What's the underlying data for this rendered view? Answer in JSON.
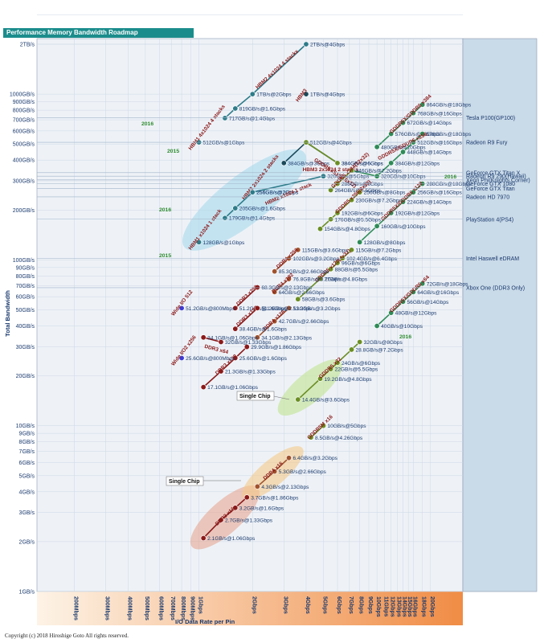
{
  "title": "Performance Memory Bandwidth Roadmap",
  "copyright": "Copyright (c) 2018 Hiroshige Goto All rights reserved.",
  "chart_data": {
    "type": "line",
    "xlabel": "I/O Data Rate per Pin",
    "ylabel": "Total Bandwidth",
    "y_scale": "log",
    "x_scale": "log",
    "x_ticks": [
      "200Mbps",
      "300Mbps",
      "400Mbps",
      "500Mbps",
      "600Mbps",
      "700Mbps",
      "800Mbps",
      "900Mbps",
      "1Gbps",
      "2Gbps",
      "3Gbps",
      "4Gbps",
      "5Gbps",
      "6Gbps",
      "7Gbps",
      "8Gbps",
      "9Gbps",
      "10Gbps",
      "11Gbps",
      "12Gbps",
      "13Gbps",
      "14Gbps",
      "15Gbps",
      "16Gbps",
      "18Gbps",
      "20Gbps"
    ],
    "x_tick_values": [
      0.2,
      0.3,
      0.4,
      0.5,
      0.6,
      0.7,
      0.8,
      0.9,
      1,
      2,
      3,
      4,
      5,
      6,
      7,
      8,
      9,
      10,
      11,
      12,
      13,
      14,
      15,
      16,
      18,
      20
    ],
    "y_ticks": [
      "1GB/s",
      "2GB/s",
      "3GB/s",
      "4GB/s",
      "5GB/s",
      "6GB/s",
      "7GB/s",
      "8GB/s",
      "9GB/s",
      "10GB/s",
      "20GB/s",
      "30GB/s",
      "40GB/s",
      "50GB/s",
      "60GB/s",
      "70GB/s",
      "80GB/s",
      "90GB/s",
      "100GB/s",
      "200GB/s",
      "300GB/s",
      "400GB/s",
      "500GB/s",
      "600GB/s",
      "700GB/s",
      "800GB/s",
      "900GB/s",
      "1000GB/s",
      "2TB/s"
    ],
    "y_tick_values": [
      1,
      2,
      3,
      4,
      5,
      6,
      7,
      8,
      9,
      10,
      20,
      30,
      40,
      50,
      60,
      70,
      80,
      90,
      100,
      200,
      300,
      400,
      500,
      600,
      700,
      800,
      900,
      1000,
      2000
    ],
    "series": [
      {
        "name": "HBM1 4x1024 4 stacks",
        "color": "#2e7c8a",
        "points": [
          {
            "x": 1.0,
            "y": 512,
            "label": "512GB/s@1Gbps"
          }
        ]
      },
      {
        "name": "HBM2 4x1024 4 stacks",
        "color": "#2e7c8a",
        "points": [
          {
            "x": 1.4,
            "y": 717,
            "label": "717GB/s@1.4Gbps"
          },
          {
            "x": 1.6,
            "y": 819,
            "label": "819GB/s@1.6Gbps"
          },
          {
            "x": 2,
            "y": 1000,
            "label": "1TB/s@2Gbps"
          },
          {
            "x": 4,
            "y": 2000,
            "label": "2TB/s@4Gbps"
          }
        ]
      },
      {
        "name": "HBM2 2x1024 2 stacks",
        "color": "#2e7c8a",
        "points": [
          {
            "x": 2,
            "y": 256,
            "label": "256GB/s@2Gbps"
          }
        ]
      },
      {
        "name": "HBM3 2x1024 2 stacks",
        "color": "#1a4a5a",
        "points": [
          {
            "x": 3,
            "y": 384,
            "label": "384GB/s@3Gbps"
          },
          {
            "x": 4,
            "y": 512
          },
          {
            "x": 6,
            "y": 384,
            "label": "384GB/s@6Gbps"
          }
        ]
      },
      {
        "name": "HBM2 x1024 1 stack",
        "color": "#2e7c8a",
        "points": [
          {
            "x": 1.4,
            "y": 179,
            "label": "179GB/s@1.4Gbps"
          },
          {
            "x": 1.6,
            "y": 205,
            "label": "205GB/s@1.6Gbps"
          },
          {
            "x": 2,
            "y": 256,
            "label": "256GB/s@2Gbps"
          },
          {
            "x": 5,
            "y": 320,
            "label": "320GB/s@5Gbps"
          }
        ]
      },
      {
        "name": "HBM1 x1024 1 stack",
        "color": "#2e7c8a",
        "points": [
          {
            "x": 1,
            "y": 128,
            "label": "128GB/s@1Gbps"
          }
        ]
      },
      {
        "name": "HBM3",
        "color": "#1a4a5a",
        "points": [
          {
            "x": 4,
            "y": 1000,
            "label": "1TB/s@4Gbps"
          }
        ]
      },
      {
        "name": "GDDR5 x512(16x32)",
        "color": "#6b8e23",
        "points": [
          {
            "x": 4,
            "y": 512,
            "label": "512GB/s@4Gbps"
          },
          {
            "x": 6,
            "y": 384,
            "label": "384GB/s@6Gbps"
          }
        ]
      },
      {
        "name": "GDDR5X/GDDR6 x384",
        "color": "#2e8b57",
        "points": [
          {
            "x": 10,
            "y": 480,
            "label": "480GB/s@10Gbps"
          },
          {
            "x": 12,
            "y": 576,
            "label": "576GB/s@12Gbps"
          },
          {
            "x": 14,
            "y": 672,
            "label": "672GB/s@14Gbps"
          },
          {
            "x": 16,
            "y": 768,
            "label": "768GB/s@16Gbps"
          },
          {
            "x": 18,
            "y": 864,
            "label": "864GB/s@18Gbps"
          }
        ]
      },
      {
        "name": "GDDR5X/GDDR6 x256",
        "color": "#2e8b57",
        "points": [
          {
            "x": 7.2,
            "y": 346,
            "label": "346GB/s@7.2Gbps"
          },
          {
            "x": 10,
            "y": 320,
            "label": "320GB/s@10Gbps"
          },
          {
            "x": 12,
            "y": 384,
            "label": "384GB/s@12Gbps"
          },
          {
            "x": 14,
            "y": 448,
            "label": "448GB/s@14Gbps"
          },
          {
            "x": 16,
            "y": 512,
            "label": "512GB/s@16Gbps"
          },
          {
            "x": 18,
            "y": 576,
            "label": "576GB/s@18Gbps"
          }
        ]
      },
      {
        "name": "GDDR5 x384(12x32)",
        "color": "#6b8e23",
        "points": [
          {
            "x": 5.5,
            "y": 264,
            "label": "264GB/s@5.5Gbps"
          },
          {
            "x": 6,
            "y": 288,
            "label": "288GB/s@6Gbps"
          },
          {
            "x": 7.2,
            "y": 346
          }
        ]
      },
      {
        "name": "GDDR5 x256(8x32)",
        "color": "#6b8e23",
        "points": [
          {
            "x": 5.5,
            "y": 176,
            "label": "176GB/s@5.5Gbps"
          },
          {
            "x": 4.8,
            "y": 154,
            "label": "154GB/s@4.8Gbps"
          },
          {
            "x": 6,
            "y": 192,
            "label": "192GB/s@6Gbps"
          },
          {
            "x": 7.2,
            "y": 230,
            "label": "230GB/s@7.2Gbps"
          },
          {
            "x": 8,
            "y": 256,
            "label": "256GB/s@8Gbps"
          }
        ]
      },
      {
        "name": "GDDR5X/GDDR6 x128",
        "color": "#2e8b57",
        "points": [
          {
            "x": 8,
            "y": 128,
            "label": "128GB/s@8Gbps"
          },
          {
            "x": 10,
            "y": 160,
            "label": "160GB/s@10Gbps"
          },
          {
            "x": 12,
            "y": 192,
            "label": "192GB/s@12Gbps"
          },
          {
            "x": 14,
            "y": 224,
            "label": "224GB/s@14Gbps"
          },
          {
            "x": 16,
            "y": 256,
            "label": "256GB/s@16Gbps"
          },
          {
            "x": 18,
            "y": 288,
            "label": "288GB/s@18Gbps"
          }
        ]
      },
      {
        "name": "GDDR5 x128(4x32)",
        "color": "#6b8e23",
        "points": [
          {
            "x": 3.6,
            "y": 58,
            "label": "58GB/s@3.6Gbps"
          },
          {
            "x": 4.8,
            "y": 77,
            "label": "77GB/s@4.8Gbps"
          },
          {
            "x": 5.5,
            "y": 88,
            "label": "88GB/s@5.5Gbps"
          },
          {
            "x": 6,
            "y": 96,
            "label": "96GB/s@6Gbps"
          },
          {
            "x": 6.4,
            "y": 102.4,
            "label": "102.4GB/s@6.4Gbps"
          },
          {
            "x": 7.2,
            "y": 115,
            "label": "115GB/s@7.2Gbps"
          }
        ]
      },
      {
        "name": "GDDR5X/GDDR6 x64",
        "color": "#2e8b57",
        "points": [
          {
            "x": 10,
            "y": 40,
            "label": "40GB/s@10Gbps"
          },
          {
            "x": 12,
            "y": 48,
            "label": "48GB/s@12Gbps"
          },
          {
            "x": 14,
            "y": 56,
            "label": "56GB/s@14Gbps"
          },
          {
            "x": 16,
            "y": 64,
            "label": "64GB/s@16Gbps"
          },
          {
            "x": 18,
            "y": 72,
            "label": "72GB/s@18Gbps"
          }
        ]
      },
      {
        "name": "GDDR5 x32",
        "color": "#6b8e23",
        "points": [
          {
            "x": 3.6,
            "y": 14.4,
            "label": "14.4GB/s@3.6Gbps"
          },
          {
            "x": 4.8,
            "y": 19.2,
            "label": "19.2GB/s@4.8Gbps"
          },
          {
            "x": 5.5,
            "y": 22,
            "label": "22GB/s@5.5Gbps"
          },
          {
            "x": 6,
            "y": 24,
            "label": "24GB/s@6Gbps"
          },
          {
            "x": 7.2,
            "y": 28.8,
            "label": "28.8GB/s@7.2Gbps"
          },
          {
            "x": 8,
            "y": 32,
            "label": "32GB/s@8Gbps"
          }
        ]
      },
      {
        "name": "GDDR5M x16",
        "color": "#6b8e23",
        "points": [
          {
            "x": 4.26,
            "y": 8.5,
            "label": "8.5GB/s@4.26Gbps"
          },
          {
            "x": 5,
            "y": 10,
            "label": "10GB/s@5Gbps"
          }
        ]
      },
      {
        "name": "DDR4 x256",
        "color": "#a0522d",
        "points": [
          {
            "x": 2.66,
            "y": 85.3,
            "label": "85.3GB/s@2.66Gbps"
          },
          {
            "x": 3.2,
            "y": 102,
            "label": "102GB/s@3.2Gbps"
          },
          {
            "x": 3.6,
            "y": 115,
            "label": "115GB/s@3.6Gbps"
          }
        ]
      },
      {
        "name": "DDR4 x192",
        "color": "#a0522d",
        "points": [
          {
            "x": 2.66,
            "y": 64,
            "label": "64GB/s@2.66Gbps"
          },
          {
            "x": 3.2,
            "y": 76.8,
            "label": "76.8GB/s@3.2Gbps"
          }
        ]
      },
      {
        "name": "DDR4 x128",
        "color": "#a0522d",
        "points": [
          {
            "x": 2.13,
            "y": 34.1,
            "label": "34.1GB/s@2.13Gbps"
          },
          {
            "x": 2.66,
            "y": 42.7,
            "label": "42.7GB/s@2.66Gbps"
          },
          {
            "x": 3.2,
            "y": 51.2,
            "label": "51.2GB/s@3.2Gbps"
          }
        ]
      },
      {
        "name": "DDR3 x256",
        "color": "#8b1a1a",
        "points": [
          {
            "x": 1.6,
            "y": 51.2,
            "label": "51.2GB/s@1.6Gbps"
          },
          {
            "x": 2.13,
            "y": 68.3,
            "label": "68.3GB/s@2.13Gbps"
          }
        ]
      },
      {
        "name": "DDR3 x192",
        "color": "#8b1a1a",
        "points": [
          {
            "x": 1.6,
            "y": 38.4,
            "label": "38.4GB/s@1.6Gbps"
          },
          {
            "x": 2.13,
            "y": 51.2,
            "label": "51.2GB/s@2.13Gbps"
          }
        ]
      },
      {
        "name": "DDR3 x128",
        "color": "#8b1a1a",
        "points": [
          {
            "x": 1.06,
            "y": 17.1,
            "label": "17.1GB/s@1.06Gbps"
          },
          {
            "x": 1.33,
            "y": 21.3,
            "label": "21.3GB/s@1.33Gbps"
          },
          {
            "x": 1.6,
            "y": 25.6,
            "label": "25.6GB/s@1.6Gbps"
          },
          {
            "x": 1.86,
            "y": 29.9,
            "label": "29.9GB/s@1.86Gbps"
          }
        ]
      },
      {
        "name": "DDR3 x64",
        "color": "#8b1a1a",
        "points": [
          {
            "x": 1.06,
            "y": 34.1,
            "label": "34.1GB/s@1.06Gbps"
          },
          {
            "x": 1.33,
            "y": 32,
            "label": "32GB/s@1.33Gbps"
          }
        ]
      },
      {
        "name": "Wide I/O 512",
        "color": "#3b3bd6",
        "points": [
          {
            "x": 0.8,
            "y": 51.2,
            "label": "51.2GB/s@800Mbps"
          }
        ]
      },
      {
        "name": "Wide I/O2 x256",
        "color": "#3b3bd6",
        "points": [
          {
            "x": 0.8,
            "y": 25.6,
            "label": "25.6GB/s@800Mbps"
          }
        ]
      },
      {
        "name": "DDR4 x16",
        "color": "#a0522d",
        "points": [
          {
            "x": 2.13,
            "y": 4.3,
            "label": "4.3GB/s@2.13Gbps"
          },
          {
            "x": 2.66,
            "y": 5.3,
            "label": "5.3GB/s@2.66Gbps"
          },
          {
            "x": 3.2,
            "y": 6.4,
            "label": "6.4GB/s@3.2Gbps"
          }
        ]
      },
      {
        "name": "DDR3 x16",
        "color": "#8b1a1a",
        "points": [
          {
            "x": 1.06,
            "y": 2.1,
            "label": "2.1GB/s@1.06Gbps"
          },
          {
            "x": 1.33,
            "y": 2.7,
            "label": "2.7GB/s@1.33Gbps"
          },
          {
            "x": 1.6,
            "y": 3.2,
            "label": "3.2GB/s@1.6Gbps"
          },
          {
            "x": 1.86,
            "y": 3.7,
            "label": "3.7GB/s@1.86Gbps"
          }
        ]
      }
    ],
    "gpu_labels": [
      {
        "text": "Tesla P100(GP100)",
        "y": 720
      },
      {
        "text": "Radeon R9 Fury",
        "y": 512
      },
      {
        "text": "GeForce GTX Titan X",
        "y": 336
      },
      {
        "text": "Radeon R9 290(Hawaii)",
        "y": 320
      },
      {
        "text": "Xeon Phi(Knights Corner)",
        "y": 304
      },
      {
        "text": "GeForce GTX 1080",
        "y": 288
      },
      {
        "text": "GeForce GTX Titan",
        "y": 270
      },
      {
        "text": "Radeon HD 7970",
        "y": 240
      },
      {
        "text": "PlayStation 4(PS4)",
        "y": 176
      },
      {
        "text": "Intel Haswell eDRAM",
        "y": 102
      },
      {
        "text": "Xbox One (DDR3 Only)",
        "y": 68
      }
    ],
    "annotations": [
      "2015",
      "2016",
      "Single Chip"
    ]
  }
}
